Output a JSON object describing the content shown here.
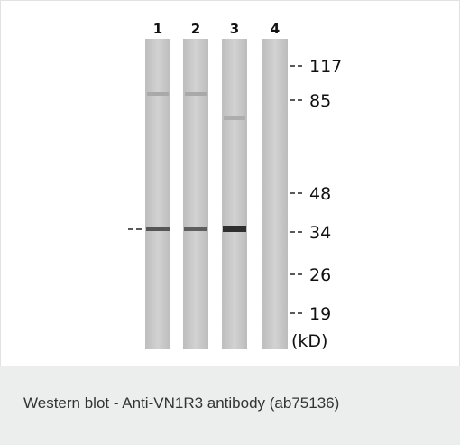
{
  "figure": {
    "lanes": [
      "1",
      "2",
      "3",
      "4"
    ],
    "markers": [
      "117",
      "85",
      "48",
      "34",
      "26",
      "19"
    ],
    "unit": "(kD)"
  },
  "caption": "Western blot - Anti-VN1R3 antibody (ab75136)"
}
